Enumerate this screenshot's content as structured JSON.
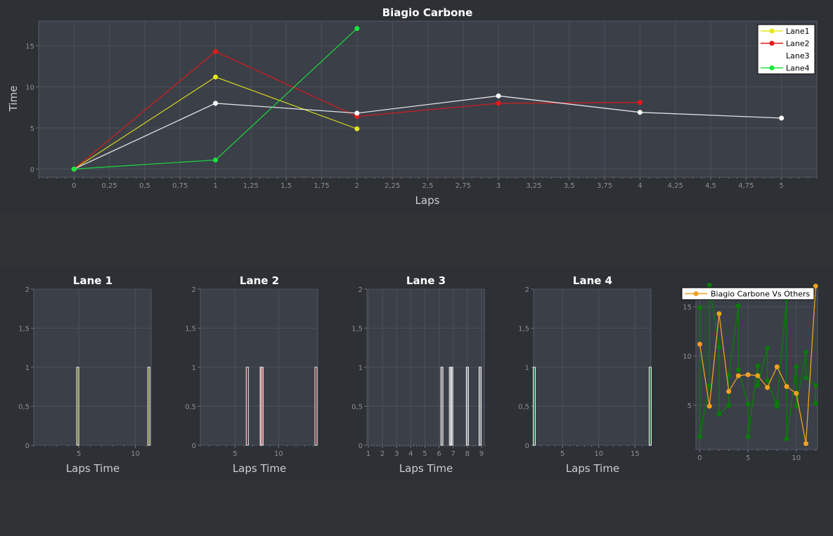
{
  "main_chart": {
    "title": "Biagio Carbone",
    "xlabel": "Laps",
    "ylabel": "Time",
    "x_ticks": [
      "0",
      "0,25",
      "0,5",
      "0,75",
      "1",
      "1,25",
      "1,5",
      "1,75",
      "2",
      "2,25",
      "2,5",
      "2,75",
      "3",
      "3,25",
      "3,5",
      "3,75",
      "4",
      "4,25",
      "4,5",
      "4,75",
      "5"
    ],
    "y_ticks": [
      "0",
      "5",
      "10",
      "15"
    ],
    "legend": [
      "Lane1",
      "Lane2",
      "Lane3",
      "Lane4"
    ]
  },
  "histograms": [
    {
      "title": "Lane 1",
      "xlabel": "Laps Time",
      "x_ticks": [
        "5",
        "10"
      ],
      "y_ticks": [
        "0",
        "0,5",
        "1",
        "1,5",
        "2"
      ]
    },
    {
      "title": "Lane 2",
      "xlabel": "Laps Time",
      "x_ticks": [
        "5",
        "10"
      ],
      "y_ticks": [
        "0",
        "0,5",
        "1",
        "1,5",
        "2"
      ]
    },
    {
      "title": "Lane 3",
      "xlabel": "Laps Time",
      "x_ticks": [
        "1",
        "2",
        "3",
        "4",
        "5",
        "6",
        "7",
        "8",
        "9"
      ],
      "y_ticks": [
        "0",
        "0,5",
        "1",
        "1,5",
        "2"
      ]
    },
    {
      "title": "Lane 4",
      "xlabel": "Laps Time",
      "x_ticks": [
        "5",
        "10",
        "15"
      ],
      "y_ticks": [
        "0",
        "0,5",
        "1",
        "1,5",
        "2"
      ]
    }
  ],
  "comparison_chart": {
    "legend": "Biagio Carbone Vs Others",
    "x_ticks": [
      "0",
      "5",
      "10"
    ],
    "y_ticks": [
      "5",
      "10",
      "15"
    ]
  },
  "chart_data": [
    {
      "type": "line",
      "title": "Biagio Carbone",
      "xlabel": "Laps",
      "ylabel": "Time",
      "xlim": [
        -0.25,
        5.25
      ],
      "ylim": [
        -1,
        18
      ],
      "grid": true,
      "legend_position": "top-right",
      "series": [
        {
          "name": "Lane1",
          "color": "#e6e619",
          "x": [
            0,
            1,
            2
          ],
          "y": [
            0,
            11.2,
            4.9
          ]
        },
        {
          "name": "Lane2",
          "color": "#e61919",
          "x": [
            0,
            1,
            2,
            3,
            4
          ],
          "y": [
            0,
            14.3,
            6.4,
            8.0,
            8.1
          ]
        },
        {
          "name": "Lane3",
          "color": "#ffffff",
          "x": [
            0,
            1,
            2,
            3,
            4,
            5
          ],
          "y": [
            0,
            8.0,
            6.8,
            8.9,
            6.9,
            6.2
          ]
        },
        {
          "name": "Lane4",
          "color": "#19e63c",
          "x": [
            0,
            1,
            2
          ],
          "y": [
            0,
            1.1,
            17.1
          ]
        }
      ]
    },
    {
      "type": "bar",
      "title": "Lane 1",
      "xlabel": "Laps Time",
      "xlim": [
        1,
        11.4
      ],
      "ylim": [
        0,
        2
      ],
      "color": "#c8c800",
      "x": [
        4.9,
        11.2
      ],
      "values": [
        1,
        1
      ]
    },
    {
      "type": "bar",
      "title": "Lane 2",
      "xlabel": "Laps Time",
      "xlim": [
        1,
        14.5
      ],
      "ylim": [
        0,
        2
      ],
      "color": "#c80000",
      "x": [
        6.4,
        8.0,
        8.1,
        14.3
      ],
      "values": [
        1,
        1,
        1,
        1
      ]
    },
    {
      "type": "bar",
      "title": "Lane 3",
      "xlabel": "Laps Time",
      "xlim": [
        0.9,
        9.2
      ],
      "ylim": [
        0,
        2
      ],
      "color": "#ffffff",
      "x": [
        6.2,
        6.8,
        6.9,
        8.0,
        8.9
      ],
      "values": [
        1,
        1,
        1,
        1,
        1
      ]
    },
    {
      "type": "bar",
      "title": "Lane 4",
      "xlabel": "Laps Time",
      "xlim": [
        1,
        17.2
      ],
      "ylim": [
        0,
        2
      ],
      "color": "#19e63c",
      "x": [
        1.1,
        17.1
      ],
      "values": [
        1,
        1
      ]
    },
    {
      "type": "line",
      "xlim": [
        -0.4,
        12.2
      ],
      "ylim": [
        0.5,
        16.8
      ],
      "grid": true,
      "legend_position": "top",
      "series": [
        {
          "name": "Biagio Carbone Vs Others",
          "color": "#f0a020",
          "x": [
            0,
            1,
            2,
            3,
            4,
            5,
            6,
            7,
            8,
            9,
            10,
            11,
            12
          ],
          "y": [
            11.2,
            4.9,
            14.3,
            6.4,
            8.0,
            8.1,
            8.0,
            6.8,
            8.9,
            6.9,
            6.2,
            1.1,
            17.1
          ]
        },
        {
          "color": "#0a7a0a",
          "x": [
            0,
            0,
            1,
            1,
            2,
            2,
            3,
            3,
            4,
            4,
            5,
            5,
            6,
            6,
            7,
            7,
            8,
            8,
            9,
            9,
            10,
            10,
            11,
            11,
            12,
            12
          ],
          "y": [
            14.9,
            1.8,
            7.0,
            17.2,
            10.9,
            4.1,
            5.0,
            8.0,
            15.1,
            8.6,
            5.1,
            1.8,
            9.0,
            7.0,
            10.8,
            7.5,
            4.9,
            5.3,
            15.8,
            1.6,
            8.9,
            4.9,
            10.4,
            7.8,
            7.0,
            5.2
          ]
        }
      ]
    }
  ]
}
